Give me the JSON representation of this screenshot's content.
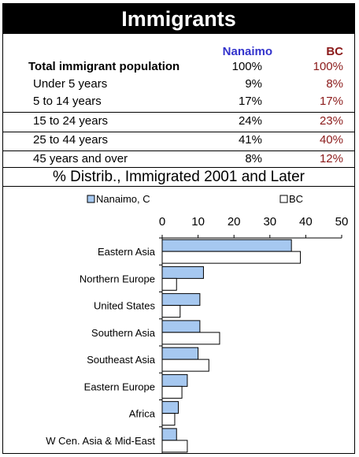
{
  "title": "Immigrants",
  "table": {
    "columns": [
      "Nanaimo",
      "BC"
    ],
    "rows": [
      {
        "label": "Total immigrant population",
        "nanaimo": "100%",
        "bc": "100%"
      },
      {
        "label": "Under 5 years",
        "nanaimo": "9%",
        "bc": "8%"
      },
      {
        "label": "5 to 14 years",
        "nanaimo": "17%",
        "bc": "17%"
      },
      {
        "label": "15 to 24 years",
        "nanaimo": "24%",
        "bc": "23%"
      },
      {
        "label": "25 to 44 years",
        "nanaimo": "41%",
        "bc": "40%"
      },
      {
        "label": "45 years and over",
        "nanaimo": "8%",
        "bc": "12%"
      }
    ]
  },
  "colors": {
    "nanaimo_header": "#3333cc",
    "bc_text": "#8b1a1a",
    "nanaimo_bar": "#a6c8f0",
    "bc_bar": "#ffffff"
  },
  "chart_data": {
    "type": "bar",
    "orientation": "horizontal",
    "title": "% Distrib., Immigrated 2001 and Later",
    "categories": [
      "Eastern Asia",
      "Northern Europe",
      "United States",
      "Southern Asia",
      "Southeast Asia",
      "Eastern Europe",
      "Africa",
      "W Cen. Asia & Mid-East"
    ],
    "series": [
      {
        "name": "Nanaimo, C",
        "values": [
          36,
          11.5,
          10.5,
          10.5,
          10,
          7,
          4.5,
          4
        ]
      },
      {
        "name": "BC",
        "values": [
          38.5,
          4,
          5,
          16,
          13,
          5.5,
          3.5,
          7
        ]
      }
    ],
    "xlim": [
      0,
      50
    ],
    "xticks": [
      0,
      10,
      20,
      30,
      40,
      50
    ],
    "xaxis_position": "top",
    "legend_position": "top",
    "grid": false
  }
}
